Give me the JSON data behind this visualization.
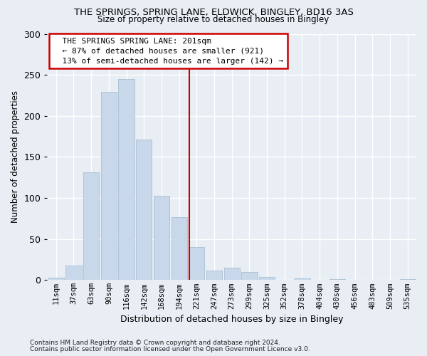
{
  "title1": "THE SPRINGS, SPRING LANE, ELDWICK, BINGLEY, BD16 3AS",
  "title2": "Size of property relative to detached houses in Bingley",
  "xlabel": "Distribution of detached houses by size in Bingley",
  "ylabel": "Number of detached properties",
  "bar_color": "#c8d8ea",
  "bar_edge_color": "#a0b8cc",
  "background_color": "#e8eef4",
  "grid_color": "#ffffff",
  "categories": [
    "11sqm",
    "37sqm",
    "63sqm",
    "90sqm",
    "116sqm",
    "142sqm",
    "168sqm",
    "194sqm",
    "221sqm",
    "247sqm",
    "273sqm",
    "299sqm",
    "325sqm",
    "352sqm",
    "378sqm",
    "404sqm",
    "430sqm",
    "456sqm",
    "483sqm",
    "509sqm",
    "535sqm"
  ],
  "values": [
    3,
    18,
    131,
    229,
    245,
    171,
    103,
    77,
    40,
    12,
    15,
    10,
    4,
    0,
    2,
    0,
    1,
    0,
    0,
    0,
    1
  ],
  "ylim": [
    0,
    300
  ],
  "yticks": [
    0,
    50,
    100,
    150,
    200,
    250,
    300
  ],
  "vline_pos": 7.57,
  "annotation_text": "  THE SPRINGS SPRING LANE: 201sqm\n  ← 87% of detached houses are smaller (921)\n  13% of semi-detached houses are larger (142) →",
  "annotation_box_color": "#ffffff",
  "annotation_box_edge_color": "#cc0000",
  "vline_color": "#cc0000",
  "footnote1": "Contains HM Land Registry data © Crown copyright and database right 2024.",
  "footnote2": "Contains public sector information licensed under the Open Government Licence v3.0."
}
